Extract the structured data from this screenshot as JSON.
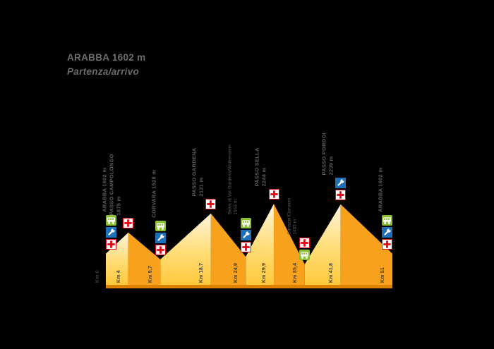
{
  "title": {
    "line1": "ARABBA 1602 m",
    "subtitle": "Partenza/arrivo"
  },
  "colors": {
    "background": "#000000",
    "title_text": "#6c6c6b",
    "label_text": "#5e5e5d",
    "km_label_text": "#3d3d3c",
    "face_light_top": "#fdf5dc",
    "face_light_mid": "#ffdc75",
    "face_light_bottom": "#ffc93c",
    "face_dark": "#f7a11c",
    "base_band": "#de8204",
    "icon_green": "#8cbf2f",
    "icon_blue": "#1d71b8",
    "icon_red": "#e30613",
    "icon_white": "#ffffff"
  },
  "icons": {
    "bus": "shuttle-bus-icon",
    "wrench": "mechanical-assistance-icon",
    "cross": "first-aid-icon"
  },
  "chart_data": {
    "type": "area",
    "title": "ARABBA 1602 m",
    "subtitle": "Partenza/arrivo",
    "x_unit": "Km",
    "y_unit": "m",
    "x_range_km": [
      0,
      51
    ],
    "elevation_range_m": [
      1200,
      2244
    ],
    "grid": false,
    "waypoints": [
      {
        "label": "ARABBA 1602 m",
        "elevation_label": "",
        "elevation_m": 1602,
        "km": 0,
        "km_label": "Km 0",
        "small": false,
        "services": [
          "bus",
          "wrench",
          "cross"
        ]
      },
      {
        "label": "PASSO CAMPOLONGO",
        "elevation_label": "1875 m",
        "elevation_m": 1875,
        "km": 4,
        "km_label": "Km 4",
        "small": false,
        "services": [
          "cross"
        ]
      },
      {
        "label": "CORVARA 1528 m",
        "elevation_label": "",
        "elevation_m": 1528,
        "km": 9.7,
        "km_label": "Km 9,7",
        "small": false,
        "services": [
          "bus",
          "wrench",
          "cross"
        ]
      },
      {
        "label": "PASSO GARDENA",
        "elevation_label": "2121 m",
        "elevation_m": 2121,
        "km": 18.7,
        "km_label": "Km 18,7",
        "small": false,
        "services": [
          "cross"
        ]
      },
      {
        "label": "Selva di Val Gardena/Wolkenstein",
        "elevation_label": "1563 m",
        "elevation_m": 1563,
        "km": 24.9,
        "km_label": "Km 24,9",
        "small": true,
        "services": [
          "bus",
          "wrench",
          "cross"
        ]
      },
      {
        "label": "PASSO SELLA",
        "elevation_label": "2244 m",
        "elevation_m": 2244,
        "km": 29.9,
        "km_label": "Km 29,9",
        "small": false,
        "services": [
          "cross"
        ]
      },
      {
        "label": "Canazei/Cianacei",
        "elevation_label": "1465 m",
        "elevation_m": 1465,
        "km": 35.4,
        "km_label": "Km 35,4",
        "small": true,
        "services": [
          "cross",
          "bus"
        ]
      },
      {
        "label": "PASSO PORDOI",
        "elevation_label": "2239 m",
        "elevation_m": 2239,
        "km": 41.8,
        "km_label": "Km 41,8",
        "small": false,
        "services": [
          "wrench",
          "cross"
        ]
      },
      {
        "label": "ARABBA 1602 m",
        "elevation_label": "",
        "elevation_m": 1602,
        "km": 51,
        "km_label": "Km 51",
        "small": false,
        "services": [
          "bus",
          "wrench",
          "cross"
        ]
      }
    ]
  }
}
